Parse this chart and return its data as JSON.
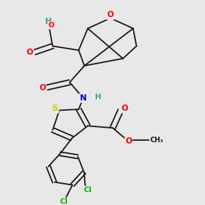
{
  "background_color": "#e8e8e8",
  "bond_color": "#1a1a1a",
  "atom_colors": {
    "O": "#ff0000",
    "N": "#0000cd",
    "S": "#cccc00",
    "Cl": "#00bb00",
    "H": "#4a9a9a",
    "C": "#1a1a1a"
  },
  "figsize": [
    3.0,
    3.0
  ],
  "dpi": 100
}
